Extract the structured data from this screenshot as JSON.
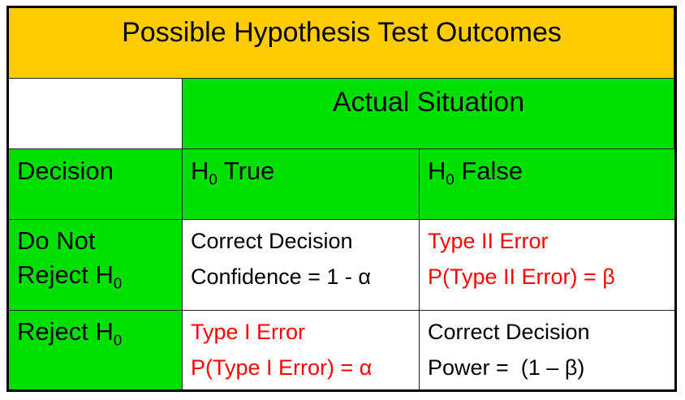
{
  "title": "Possible Hypothesis Test Outcomes",
  "header": {
    "actual_situation": "Actual Situation",
    "decision": "Decision",
    "h0_true": {
      "prefix": "H",
      "sub": "0",
      "suffix": " True"
    },
    "h0_false": {
      "prefix": "H",
      "sub": "0",
      "suffix": " False"
    }
  },
  "rows": [
    {
      "label": {
        "prefix": "Do Not",
        "line2": "Reject H",
        "sub": "0"
      },
      "true_cell": {
        "line1": "Correct Decision",
        "line2": "Confidence = 1 - α"
      },
      "false_cell": {
        "line1": "Type II Error",
        "line2": "P(Type II Error) = β"
      }
    },
    {
      "label": {
        "line1": "Reject H",
        "sub": "0"
      },
      "true_cell": {
        "line1": "Type I Error",
        "line2": "P(Type I Error) = α"
      },
      "false_cell": {
        "line1": "Correct Decision",
        "line2": "Power =  (1 – β)"
      }
    }
  ],
  "colors": {
    "title_bg": "#FFCC00",
    "header_bg": "#00E000",
    "error_text": "#FF0000"
  }
}
